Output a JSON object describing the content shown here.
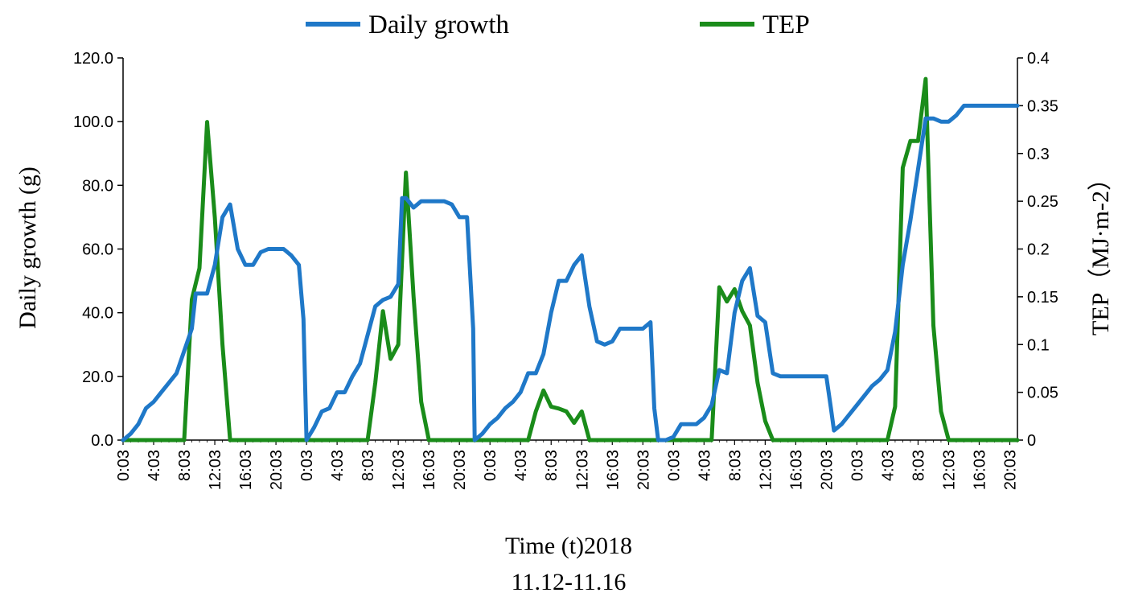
{
  "chart_data": {
    "type": "line",
    "title": "",
    "xlabel": "Time (t)2018",
    "xlabel_line2": "11.12-11.16",
    "ylabel": "Daily growth (g)",
    "y2label": "TEP（MJ·m-2）",
    "ylim": [
      0,
      120
    ],
    "y2lim": [
      0,
      0.4
    ],
    "y_ticks": [
      "0.0",
      "20.0",
      "40.0",
      "60.0",
      "80.0",
      "100.0",
      "120.0"
    ],
    "y2_ticks": [
      "0",
      "0.05",
      "0.1",
      "0.15",
      "0.2",
      "0.25",
      "0.3",
      "0.35",
      "0.4"
    ],
    "x_tick_labels": [
      "0:03",
      "4:03",
      "8:03",
      "12:03",
      "16:03",
      "20:03",
      "0:03",
      "4:03",
      "8:03",
      "12:03",
      "16:03",
      "20:03",
      "0:03",
      "4:03",
      "8:03",
      "12:03",
      "16:03",
      "20:03",
      "0:03",
      "4:03",
      "8:03",
      "12:03",
      "16:03",
      "20:03",
      "0:03",
      "4:03",
      "8:03",
      "12:03",
      "16:03",
      "20:03"
    ],
    "grid": false,
    "legend_position": "top-center",
    "colors": {
      "Daily growth": "#1f78c8",
      "TEP": "#1a8c1a"
    },
    "series": [
      {
        "name": "Daily growth",
        "axis": "left",
        "points": [
          [
            0,
            0
          ],
          [
            1,
            2
          ],
          [
            2,
            5
          ],
          [
            3,
            10
          ],
          [
            4,
            12
          ],
          [
            5,
            15
          ],
          [
            6,
            18
          ],
          [
            7,
            21
          ],
          [
            8,
            28
          ],
          [
            9,
            35
          ],
          [
            9.5,
            46
          ],
          [
            10,
            46
          ],
          [
            11,
            46
          ],
          [
            12,
            55
          ],
          [
            13,
            70
          ],
          [
            14,
            74
          ],
          [
            15,
            60
          ],
          [
            16,
            55
          ],
          [
            17,
            55
          ],
          [
            18,
            59
          ],
          [
            19,
            60
          ],
          [
            20,
            60
          ],
          [
            21,
            60
          ],
          [
            22,
            58
          ],
          [
            23,
            55
          ],
          [
            23.6,
            38
          ],
          [
            24,
            0
          ],
          [
            25,
            4
          ],
          [
            26,
            9
          ],
          [
            27,
            10
          ],
          [
            28,
            15
          ],
          [
            29,
            15
          ],
          [
            30,
            20
          ],
          [
            31,
            24
          ],
          [
            32,
            33
          ],
          [
            33,
            42
          ],
          [
            34,
            44
          ],
          [
            35,
            45
          ],
          [
            36,
            49
          ],
          [
            36.5,
            76
          ],
          [
            37,
            76
          ],
          [
            38,
            73
          ],
          [
            39,
            75
          ],
          [
            40,
            75
          ],
          [
            41,
            75
          ],
          [
            42,
            75
          ],
          [
            43,
            74
          ],
          [
            44,
            70
          ],
          [
            45,
            70
          ],
          [
            45.8,
            35
          ],
          [
            46,
            0
          ],
          [
            47,
            2
          ],
          [
            48,
            5
          ],
          [
            49,
            7
          ],
          [
            50,
            10
          ],
          [
            51,
            12
          ],
          [
            52,
            15
          ],
          [
            53,
            21
          ],
          [
            54,
            21
          ],
          [
            55,
            27
          ],
          [
            56,
            40
          ],
          [
            57,
            50
          ],
          [
            58,
            50
          ],
          [
            59,
            55
          ],
          [
            60,
            58
          ],
          [
            61,
            42
          ],
          [
            62,
            31
          ],
          [
            63,
            30
          ],
          [
            64,
            31
          ],
          [
            65,
            35
          ],
          [
            66,
            35
          ],
          [
            67,
            35
          ],
          [
            68,
            35
          ],
          [
            69,
            37
          ],
          [
            69.5,
            10
          ],
          [
            70,
            0
          ],
          [
            71,
            0
          ],
          [
            72,
            1
          ],
          [
            73,
            5
          ],
          [
            74,
            5
          ],
          [
            75,
            5
          ],
          [
            76,
            7
          ],
          [
            77,
            11
          ],
          [
            78,
            22
          ],
          [
            79,
            21
          ],
          [
            80,
            40
          ],
          [
            81,
            50
          ],
          [
            82,
            54
          ],
          [
            83,
            39
          ],
          [
            84,
            37
          ],
          [
            85,
            21
          ],
          [
            86,
            20
          ],
          [
            87,
            20
          ],
          [
            88,
            20
          ],
          [
            89,
            20
          ],
          [
            90,
            20
          ],
          [
            91,
            20
          ],
          [
            92,
            20
          ],
          [
            92.6,
            10
          ],
          [
            93,
            3
          ],
          [
            94,
            5
          ],
          [
            95,
            8
          ],
          [
            96,
            11
          ],
          [
            97,
            14
          ],
          [
            98,
            17
          ],
          [
            99,
            19
          ],
          [
            100,
            22
          ],
          [
            101,
            34
          ],
          [
            102,
            55
          ],
          [
            103,
            69
          ],
          [
            104,
            85
          ],
          [
            105,
            101
          ],
          [
            106,
            101
          ],
          [
            107,
            100
          ],
          [
            108,
            100
          ],
          [
            109,
            102
          ],
          [
            110,
            105
          ],
          [
            111,
            105
          ],
          [
            112,
            105
          ],
          [
            113,
            105
          ],
          [
            114,
            105
          ],
          [
            115,
            105
          ],
          [
            116,
            105
          ],
          [
            117,
            105
          ]
        ]
      },
      {
        "name": "TEP",
        "axis": "right",
        "points": [
          [
            0,
            0
          ],
          [
            1,
            0
          ],
          [
            2,
            0
          ],
          [
            3,
            0
          ],
          [
            4,
            0
          ],
          [
            5,
            0
          ],
          [
            6,
            0
          ],
          [
            7,
            0
          ],
          [
            8,
            0
          ],
          [
            9,
            0.147
          ],
          [
            10,
            0.18
          ],
          [
            11,
            0.333
          ],
          [
            12,
            0.233
          ],
          [
            13,
            0.1
          ],
          [
            14,
            0
          ],
          [
            15,
            0
          ],
          [
            16,
            0
          ],
          [
            17,
            0
          ],
          [
            18,
            0
          ],
          [
            19,
            0
          ],
          [
            20,
            0
          ],
          [
            21,
            0
          ],
          [
            22,
            0
          ],
          [
            23,
            0
          ],
          [
            24,
            0
          ],
          [
            25,
            0
          ],
          [
            26,
            0
          ],
          [
            27,
            0
          ],
          [
            28,
            0
          ],
          [
            29,
            0
          ],
          [
            30,
            0
          ],
          [
            31,
            0
          ],
          [
            32,
            0
          ],
          [
            33,
            0.06
          ],
          [
            34,
            0.135
          ],
          [
            35,
            0.085
          ],
          [
            36,
            0.1
          ],
          [
            37,
            0.28
          ],
          [
            38,
            0.15
          ],
          [
            39,
            0.04
          ],
          [
            40,
            0
          ],
          [
            41,
            0
          ],
          [
            42,
            0
          ],
          [
            43,
            0
          ],
          [
            44,
            0
          ],
          [
            45,
            0
          ],
          [
            46,
            0
          ],
          [
            47,
            0
          ],
          [
            48,
            0
          ],
          [
            49,
            0
          ],
          [
            50,
            0
          ],
          [
            51,
            0
          ],
          [
            52,
            0
          ],
          [
            53,
            0
          ],
          [
            54,
            0.03
          ],
          [
            55,
            0.052
          ],
          [
            56,
            0.035
          ],
          [
            57,
            0.033
          ],
          [
            58,
            0.03
          ],
          [
            59,
            0.018
          ],
          [
            60,
            0.03
          ],
          [
            61,
            0
          ],
          [
            62,
            0
          ],
          [
            63,
            0
          ],
          [
            64,
            0
          ],
          [
            65,
            0
          ],
          [
            66,
            0
          ],
          [
            67,
            0
          ],
          [
            68,
            0
          ],
          [
            69,
            0
          ],
          [
            70,
            0
          ],
          [
            71,
            0
          ],
          [
            72,
            0
          ],
          [
            73,
            0
          ],
          [
            74,
            0
          ],
          [
            75,
            0
          ],
          [
            76,
            0
          ],
          [
            77,
            0
          ],
          [
            78,
            0.16
          ],
          [
            79,
            0.145
          ],
          [
            80,
            0.158
          ],
          [
            81,
            0.135
          ],
          [
            82,
            0.12
          ],
          [
            83,
            0.06
          ],
          [
            84,
            0.02
          ],
          [
            85,
            0
          ],
          [
            86,
            0
          ],
          [
            87,
            0
          ],
          [
            88,
            0
          ],
          [
            89,
            0
          ],
          [
            90,
            0
          ],
          [
            91,
            0
          ],
          [
            92,
            0
          ],
          [
            93,
            0
          ],
          [
            94,
            0
          ],
          [
            95,
            0
          ],
          [
            96,
            0
          ],
          [
            97,
            0
          ],
          [
            98,
            0
          ],
          [
            99,
            0
          ],
          [
            100,
            0
          ],
          [
            101,
            0.035
          ],
          [
            102,
            0.285
          ],
          [
            103,
            0.313
          ],
          [
            104,
            0.313
          ],
          [
            105,
            0.378
          ],
          [
            106,
            0.12
          ],
          [
            107,
            0.03
          ],
          [
            108,
            0
          ],
          [
            109,
            0
          ],
          [
            110,
            0
          ],
          [
            111,
            0
          ],
          [
            112,
            0
          ],
          [
            113,
            0
          ],
          [
            114,
            0
          ],
          [
            115,
            0
          ],
          [
            116,
            0
          ],
          [
            117,
            0
          ]
        ]
      }
    ]
  }
}
